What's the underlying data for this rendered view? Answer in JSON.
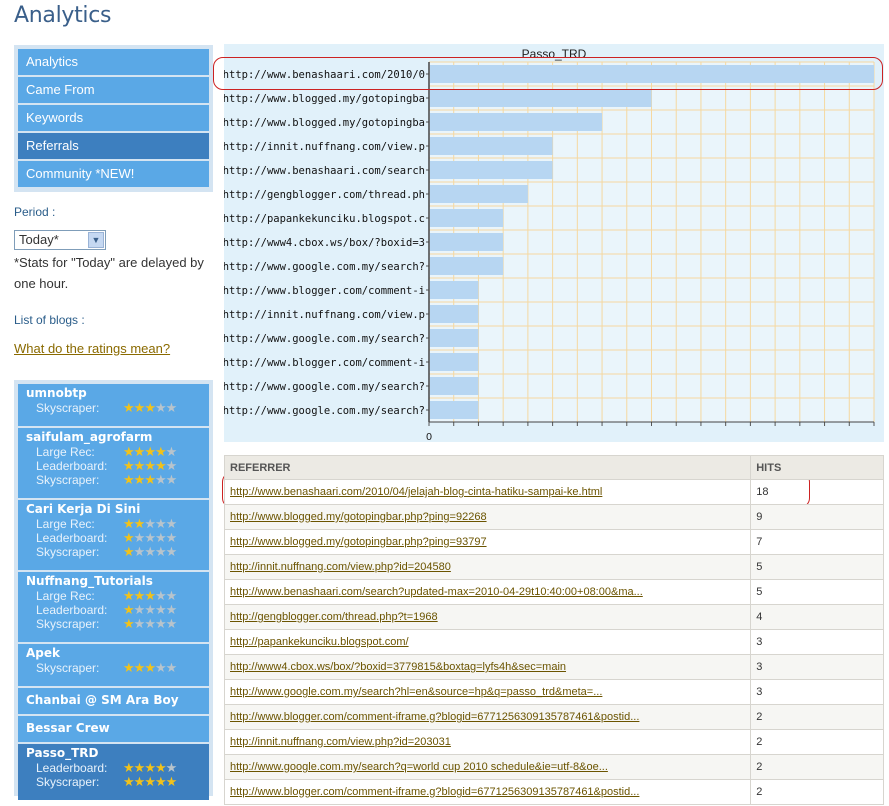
{
  "page": {
    "title": "Analytics"
  },
  "nav": {
    "items": [
      {
        "label": "Analytics",
        "active": false
      },
      {
        "label": "Came From",
        "active": false
      },
      {
        "label": "Keywords",
        "active": false
      },
      {
        "label": "Referrals",
        "active": true
      },
      {
        "label": "Community *NEW!",
        "active": false
      }
    ]
  },
  "period": {
    "label": "Period :",
    "selected": "Today*",
    "note": "*Stats for \"Today\" are delayed by one hour."
  },
  "blogs_label": "List of blogs :",
  "ratings_link": "What do the ratings mean?",
  "blogs": [
    {
      "name": "umnobtp",
      "active": false,
      "ratings": [
        {
          "label": "Skyscraper:",
          "stars": 3
        }
      ]
    },
    {
      "name": "saifulam_agrofarm",
      "active": false,
      "ratings": [
        {
          "label": "Large Rec:",
          "stars": 4
        },
        {
          "label": "Leaderboard:",
          "stars": 4
        },
        {
          "label": "Skyscraper:",
          "stars": 3
        }
      ]
    },
    {
      "name": "Cari Kerja Di Sini",
      "active": false,
      "ratings": [
        {
          "label": "Large Rec:",
          "stars": 2
        },
        {
          "label": "Leaderboard:",
          "stars": 1
        },
        {
          "label": "Skyscraper:",
          "stars": 1
        }
      ]
    },
    {
      "name": "Nuffnang_Tutorials",
      "active": false,
      "ratings": [
        {
          "label": "Large Rec:",
          "stars": 3
        },
        {
          "label": "Leaderboard:",
          "stars": 1
        },
        {
          "label": "Skyscraper:",
          "stars": 1
        }
      ]
    },
    {
      "name": "Apek",
      "active": false,
      "ratings": [
        {
          "label": "Skyscraper:",
          "stars": 3
        }
      ]
    },
    {
      "name": "Chanbai @ SM Ara Boy",
      "active": false,
      "ratings": []
    },
    {
      "name": "Bessar Crew",
      "active": false,
      "ratings": []
    },
    {
      "name": "Passo_TRD",
      "active": true,
      "ratings": [
        {
          "label": "Leaderboard:",
          "stars": 4
        },
        {
          "label": "Skyscraper:",
          "stars": 5
        }
      ]
    }
  ],
  "chart_data": {
    "type": "bar",
    "orientation": "horizontal",
    "title": "Passo_TRD",
    "categories": [
      "http://www.benashaari.com/2010/0",
      "http://www.blogged.my/gotopingba",
      "http://www.blogged.my/gotopingba",
      "http://innit.nuffnang.com/view.p",
      "http://www.benashaari.com/search",
      "http://gengblogger.com/thread.ph",
      "http://papankekunciku.blogspot.c",
      "http://www4.cbox.ws/box/?boxid=3",
      "http://www.google.com.my/search?",
      "http://www.blogger.com/comment-i",
      "http://innit.nuffnang.com/view.p",
      "http://www.google.com.my/search?",
      "http://www.blogger.com/comment-i",
      "http://www.google.com.my/search?",
      "http://www.google.com.my/search?"
    ],
    "values": [
      18,
      9,
      7,
      5,
      5,
      4,
      3,
      3,
      3,
      2,
      2,
      2,
      2,
      2,
      2
    ],
    "xlim": [
      0,
      18
    ],
    "x_tick_labels": [
      "0"
    ],
    "grid": true,
    "colors": {
      "bar": "#b7d6f2",
      "grid": "#f5d8a0",
      "background": "#e1f1fa"
    }
  },
  "table": {
    "headers": {
      "referrer": "REFERRER",
      "hits": "HITS"
    },
    "rows": [
      {
        "url": "http://www.benashaari.com/2010/04/jelajah-blog-cinta-hatiku-sampai-ke.html",
        "hits": "18"
      },
      {
        "url": "http://www.blogged.my/gotopingbar.php?ping=92268",
        "hits": "9"
      },
      {
        "url": "http://www.blogged.my/gotopingbar.php?ping=93797",
        "hits": "7"
      },
      {
        "url": "http://innit.nuffnang.com/view.php?id=204580",
        "hits": "5"
      },
      {
        "url": "http://www.benashaari.com/search?updated-max=2010-04-29t10:40:00+08:00&ma...",
        "hits": "5"
      },
      {
        "url": "http://gengblogger.com/thread.php?t=1968",
        "hits": "4"
      },
      {
        "url": "http://papankekunciku.blogspot.com/",
        "hits": "3"
      },
      {
        "url": "http://www4.cbox.ws/box/?boxid=3779815&boxtag=lyfs4h&sec=main",
        "hits": "3"
      },
      {
        "url": "http://www.google.com.my/search?hl=en&source=hp&q=passo_trd&meta=...",
        "hits": "3"
      },
      {
        "url": "http://www.blogger.com/comment-iframe.g?blogid=6771256309135787461&postid...",
        "hits": "2"
      },
      {
        "url": "http://innit.nuffnang.com/view.php?id=203031",
        "hits": "2"
      },
      {
        "url": "http://www.google.com.my/search?q=world cup 2010 schedule&ie=utf-8&oe...",
        "hits": "2"
      },
      {
        "url": "http://www.blogger.com/comment-iframe.g?blogid=6771256309135787461&postid...",
        "hits": "2"
      }
    ]
  }
}
